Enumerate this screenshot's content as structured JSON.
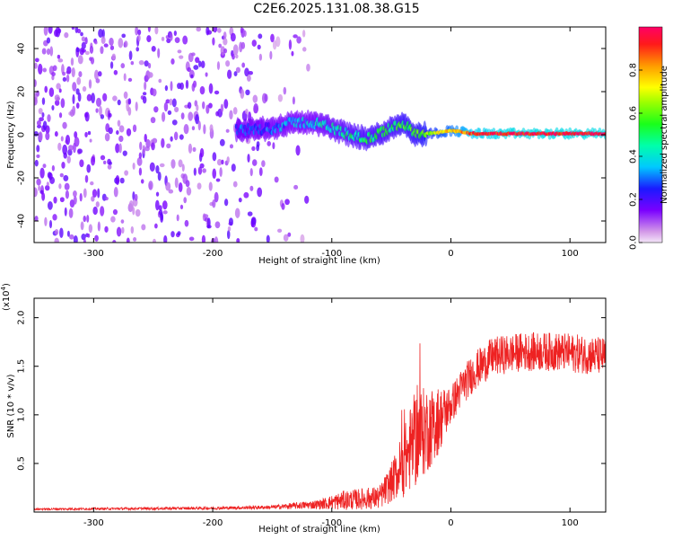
{
  "page_title": "C2E6.2025.131.08.38.G15",
  "chart_data": [
    {
      "type": "heatmap",
      "title": "C2E6.2025.131.08.38.G15",
      "xlabel": "Height of straight line (km)",
      "ylabel": "Frequency (Hz)",
      "xlim": [
        -350,
        130
      ],
      "ylim": [
        -50,
        50
      ],
      "x_ticks": [
        {
          "value": -300,
          "label": "-300"
        },
        {
          "value": -200,
          "label": "-200"
        },
        {
          "value": -100,
          "label": "-100"
        },
        {
          "value": 0,
          "label": "0"
        },
        {
          "value": 100,
          "label": "100"
        }
      ],
      "y_ticks": [
        {
          "value": -40,
          "label": "-40"
        },
        {
          "value": -20,
          "label": "-20"
        },
        {
          "value": 0,
          "label": "0"
        },
        {
          "value": 20,
          "label": "20"
        },
        {
          "value": 40,
          "label": "40"
        }
      ],
      "colorbar": {
        "label": "Normalized spectral amplitude",
        "range": [
          0,
          1
        ],
        "colormap": "rainbow (magenta-purple-blue-cyan-green-yellow-red)",
        "ticks": [
          {
            "value": 0.0,
            "label": "0.0"
          },
          {
            "value": 0.2,
            "label": "0.2"
          },
          {
            "value": 0.4,
            "label": "0.4"
          },
          {
            "value": 0.6,
            "label": "0.6"
          },
          {
            "value": 0.8,
            "label": "0.8"
          }
        ]
      },
      "ridge": [
        {
          "x": -180,
          "freq": 2,
          "amp": 0.25
        },
        {
          "x": -150,
          "freq": 3,
          "amp": 0.3
        },
        {
          "x": -130,
          "freq": 6,
          "amp": 0.35
        },
        {
          "x": -110,
          "freq": 5,
          "amp": 0.4
        },
        {
          "x": -90,
          "freq": 1,
          "amp": 0.45
        },
        {
          "x": -70,
          "freq": -2,
          "amp": 0.5
        },
        {
          "x": -50,
          "freq": 3,
          "amp": 0.5
        },
        {
          "x": -40,
          "freq": 6,
          "amp": 0.55
        },
        {
          "x": -30,
          "freq": 0,
          "amp": 0.55
        },
        {
          "x": -10,
          "freq": 1,
          "amp": 0.7
        },
        {
          "x": 0,
          "freq": 2,
          "amp": 0.75
        },
        {
          "x": 20,
          "freq": 0.5,
          "amp": 0.9
        },
        {
          "x": 50,
          "freq": 0.5,
          "amp": 0.95
        },
        {
          "x": 80,
          "freq": 0.5,
          "amp": 0.95
        },
        {
          "x": 110,
          "freq": 0.5,
          "amp": 0.95
        },
        {
          "x": 130,
          "freq": 0.5,
          "amp": 0.95
        }
      ]
    },
    {
      "type": "line",
      "xlabel": "Height of straight line (km)",
      "ylabel": "SNR (10 * v/v)",
      "y_multiplier": "(x10",
      "y_multiplier_exp": "4",
      "y_multiplier_close": ")",
      "xlim": [
        -350,
        130
      ],
      "ylim": [
        0,
        2.2
      ],
      "color": "#ee2222",
      "x_ticks": [
        {
          "value": -300,
          "label": "-300"
        },
        {
          "value": -200,
          "label": "-200"
        },
        {
          "value": -100,
          "label": "-100"
        },
        {
          "value": 0,
          "label": "0"
        },
        {
          "value": 100,
          "label": "100"
        }
      ],
      "y_ticks": [
        {
          "value": 0.5,
          "label": "0.5"
        },
        {
          "value": 1.0,
          "label": "1.0"
        },
        {
          "value": 1.5,
          "label": "1.5"
        },
        {
          "value": 2.0,
          "label": "2.0"
        }
      ],
      "envelope": [
        {
          "x": -350,
          "mean": 0.03,
          "noise": 0.01
        },
        {
          "x": -200,
          "mean": 0.04,
          "noise": 0.015
        },
        {
          "x": -150,
          "mean": 0.05,
          "noise": 0.02
        },
        {
          "x": -110,
          "mean": 0.08,
          "noise": 0.05
        },
        {
          "x": -90,
          "mean": 0.12,
          "noise": 0.1
        },
        {
          "x": -60,
          "mean": 0.15,
          "noise": 0.12
        },
        {
          "x": -50,
          "mean": 0.3,
          "noise": 0.2
        },
        {
          "x": -40,
          "mean": 0.5,
          "noise": 0.35
        },
        {
          "x": -30,
          "mean": 0.75,
          "noise": 0.5
        },
        {
          "x": -20,
          "mean": 0.85,
          "noise": 0.45
        },
        {
          "x": -10,
          "mean": 0.95,
          "noise": 0.35
        },
        {
          "x": 0,
          "mean": 1.1,
          "noise": 0.2
        },
        {
          "x": 10,
          "mean": 1.3,
          "noise": 0.2
        },
        {
          "x": 20,
          "mean": 1.45,
          "noise": 0.2
        },
        {
          "x": 35,
          "mean": 1.6,
          "noise": 0.2
        },
        {
          "x": 60,
          "mean": 1.65,
          "noise": 0.2
        },
        {
          "x": 90,
          "mean": 1.65,
          "noise": 0.2
        },
        {
          "x": 130,
          "mean": 1.6,
          "noise": 0.2
        }
      ]
    }
  ]
}
